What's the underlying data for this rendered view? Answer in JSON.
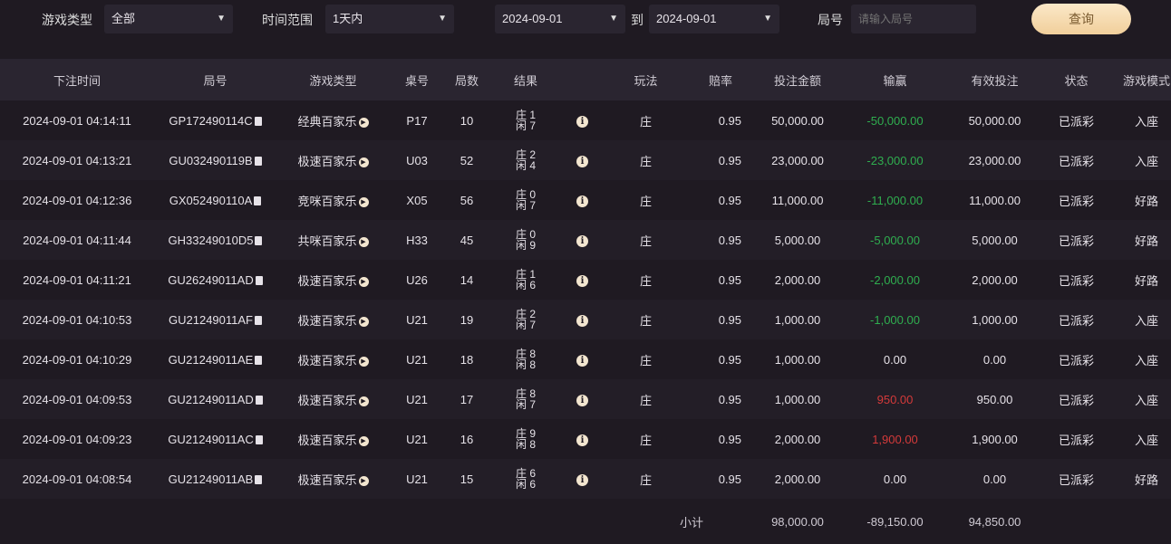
{
  "filters": {
    "game_type_label": "游戏类型",
    "game_type_value": "全部",
    "time_range_label": "时间范围",
    "time_range_value": "1天内",
    "date_from": "2024-09-01",
    "to_label": "到",
    "date_to": "2024-09-01",
    "round_label": "局号",
    "round_placeholder": "请输入局号",
    "query_button": "查询"
  },
  "table": {
    "headers": [
      "下注时间",
      "局号",
      "游戏类型",
      "桌号",
      "局数",
      "结果",
      "",
      "玩法",
      "赔率",
      "投注金额",
      "输赢",
      "有效投注",
      "状态",
      "游戏模式"
    ],
    "rows": [
      [
        "2024-09-01 04:14:11",
        "GP172490114C",
        "经典百家乐",
        "P17",
        "10",
        "庄 1",
        "闲 7",
        "庄",
        "0.95",
        "50,000.00",
        "-50,000.00",
        "50,000.00",
        "已派彩",
        "入座",
        "neg"
      ],
      [
        "2024-09-01 04:13:21",
        "GU032490119B",
        "极速百家乐",
        "U03",
        "52",
        "庄 2",
        "闲 4",
        "庄",
        "0.95",
        "23,000.00",
        "-23,000.00",
        "23,000.00",
        "已派彩",
        "入座",
        "neg"
      ],
      [
        "2024-09-01 04:12:36",
        "GX052490110A",
        "竞咪百家乐",
        "X05",
        "56",
        "庄 0",
        "闲 7",
        "庄",
        "0.95",
        "11,000.00",
        "-11,000.00",
        "11,000.00",
        "已派彩",
        "好路",
        "neg"
      ],
      [
        "2024-09-01 04:11:44",
        "GH33249010D5",
        "共咪百家乐",
        "H33",
        "45",
        "庄 0",
        "闲 9",
        "庄",
        "0.95",
        "5,000.00",
        "-5,000.00",
        "5,000.00",
        "已派彩",
        "好路",
        "neg"
      ],
      [
        "2024-09-01 04:11:21",
        "GU26249011AD",
        "极速百家乐",
        "U26",
        "14",
        "庄 1",
        "闲 6",
        "庄",
        "0.95",
        "2,000.00",
        "-2,000.00",
        "2,000.00",
        "已派彩",
        "好路",
        "neg"
      ],
      [
        "2024-09-01 04:10:53",
        "GU21249011AF",
        "极速百家乐",
        "U21",
        "19",
        "庄 2",
        "闲 7",
        "庄",
        "0.95",
        "1,000.00",
        "-1,000.00",
        "1,000.00",
        "已派彩",
        "入座",
        "neg"
      ],
      [
        "2024-09-01 04:10:29",
        "GU21249011AE",
        "极速百家乐",
        "U21",
        "18",
        "庄 8",
        "闲 8",
        "庄",
        "0.95",
        "1,000.00",
        "0.00",
        "0.00",
        "已派彩",
        "入座",
        ""
      ],
      [
        "2024-09-01 04:09:53",
        "GU21249011AD",
        "极速百家乐",
        "U21",
        "17",
        "庄 8",
        "闲 7",
        "庄",
        "0.95",
        "1,000.00",
        "950.00",
        "950.00",
        "已派彩",
        "入座",
        "pos"
      ],
      [
        "2024-09-01 04:09:23",
        "GU21249011AC",
        "极速百家乐",
        "U21",
        "16",
        "庄 9",
        "闲 8",
        "庄",
        "0.95",
        "2,000.00",
        "1,900.00",
        "1,900.00",
        "已派彩",
        "入座",
        "pos"
      ],
      [
        "2024-09-01 04:08:54",
        "GU21249011AB",
        "极速百家乐",
        "U21",
        "15",
        "庄 6",
        "闲 6",
        "庄",
        "0.95",
        "2,000.00",
        "0.00",
        "0.00",
        "已派彩",
        "好路",
        ""
      ]
    ],
    "subtotal": {
      "label": "小计",
      "amount": "98,000.00",
      "winloss": "-89,150.00",
      "valid": "94,850.00"
    }
  },
  "colors": {
    "loss": "#2fae4f",
    "win": "#d43a3a",
    "button": "#f1cf9b"
  }
}
